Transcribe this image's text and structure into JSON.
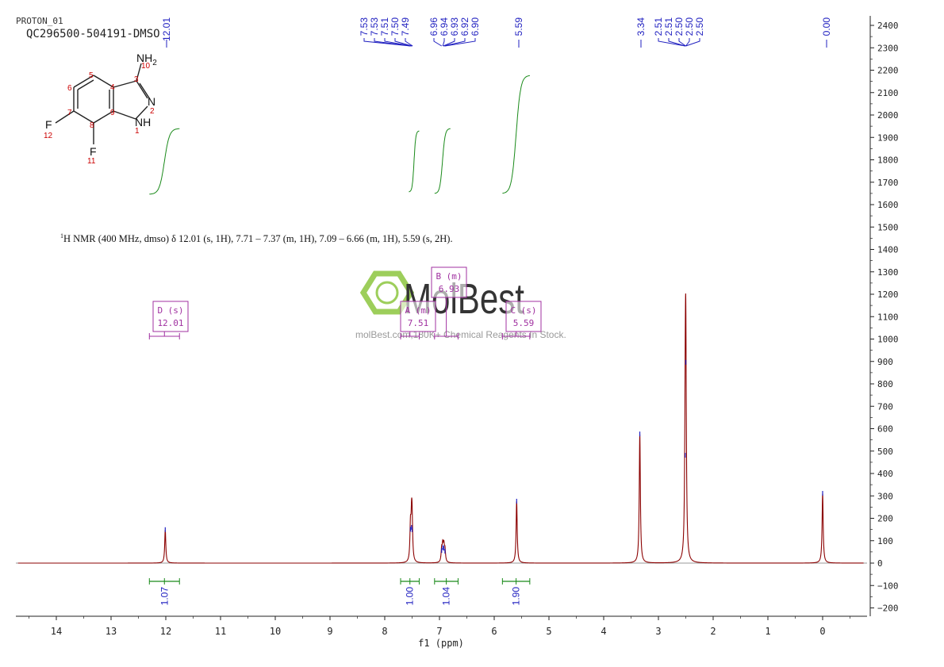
{
  "header": {
    "experiment": "PROTON_01",
    "sample": "QC296500-504191-DMSO"
  },
  "structure": {
    "labels": {
      "nh2": "NH2",
      "n": "N",
      "nh": "NH",
      "f_top": "F",
      "f_bottom": "F"
    },
    "atom_numbers": {
      "c3": "3",
      "c4": "4",
      "c5": "5",
      "c6": "6",
      "c7": "7",
      "c8": "8",
      "c9": "9",
      "n1": "1",
      "n2": "2",
      "n10": "10",
      "f11": "11",
      "f12": "12"
    }
  },
  "description": {
    "sup": "1",
    "text": "H NMR (400 MHz, dmso) δ 12.01 (s, 1H), 7.71 – 7.37 (m, 1H), 7.09 – 6.66 (m, 1H), 5.59 (s, 2H)."
  },
  "watermark": {
    "brand": "MolBest",
    "tagline": "molBest.com,180K+ Chemical Reagents In Stock."
  },
  "chart_data": {
    "type": "line",
    "title": "",
    "xlabel": "f1 (ppm)",
    "ylabel": "",
    "xlim": [
      14.7,
      -0.75
    ],
    "ylim": [
      -230,
      2450
    ],
    "x_ticks": [
      14,
      13,
      12,
      11,
      10,
      9,
      8,
      7,
      6,
      5,
      4,
      3,
      2,
      1,
      0
    ],
    "y_ticks": [
      -200,
      -100,
      0,
      100,
      200,
      300,
      400,
      500,
      600,
      700,
      800,
      900,
      1000,
      1100,
      1200,
      1300,
      1400,
      1500,
      1600,
      1700,
      1800,
      1900,
      2000,
      2100,
      2200,
      2300,
      2400
    ],
    "peaks": [
      {
        "ppm": 12.01,
        "height": 148
      },
      {
        "ppm": 7.53,
        "height": 150
      },
      {
        "ppm": 7.51,
        "height": 158
      },
      {
        "ppm": 7.5,
        "height": 148
      },
      {
        "ppm": 6.96,
        "height": 55
      },
      {
        "ppm": 6.94,
        "height": 68
      },
      {
        "ppm": 6.92,
        "height": 65
      },
      {
        "ppm": 6.9,
        "height": 52
      },
      {
        "ppm": 5.59,
        "height": 275
      },
      {
        "ppm": 3.34,
        "height": 575
      },
      {
        "ppm": 2.51,
        "height": 480
      },
      {
        "ppm": 2.5,
        "height": 895
      },
      {
        "ppm": 0.0,
        "height": 310
      }
    ],
    "peak_labels": {
      "group_12": [
        "12.01"
      ],
      "group_75": [
        "7.53",
        "7.53",
        "7.51",
        "7.50",
        "7.49"
      ],
      "group_69": [
        "6.96",
        "6.94",
        "6.93",
        "6.92",
        "6.90"
      ],
      "group_559": [
        "5.59"
      ],
      "group_334": [
        "3.34"
      ],
      "group_250": [
        "2.51",
        "2.51",
        "2.50",
        "2.50",
        "2.50"
      ],
      "group_0": [
        "0.00"
      ]
    },
    "integrations": [
      {
        "from": 12.3,
        "to": 11.75,
        "value": "1.07"
      },
      {
        "from": 7.71,
        "to": 7.37,
        "value": "1.00"
      },
      {
        "from": 7.09,
        "to": 6.66,
        "value": "1.04"
      },
      {
        "from": 5.85,
        "to": 5.35,
        "value": "1.90"
      }
    ],
    "multiplets": [
      {
        "letter": "D (s)",
        "shift": "12.01",
        "from": 12.3,
        "to": 11.75
      },
      {
        "letter": "A (m)",
        "shift": "7.51",
        "from": 7.71,
        "to": 7.37
      },
      {
        "letter": "B (m)",
        "shift": "6.93",
        "from": 7.09,
        "to": 6.66
      },
      {
        "letter": "C (s)",
        "shift": "5.59",
        "from": 5.85,
        "to": 5.35
      }
    ],
    "colors": {
      "spectrum": "#8b0000",
      "peak_marker": "#2020c0",
      "integral": "#1a8a1a",
      "multiplet": "#a030a0",
      "axis": "#222222",
      "structure_numbers": "#cc0000"
    }
  }
}
